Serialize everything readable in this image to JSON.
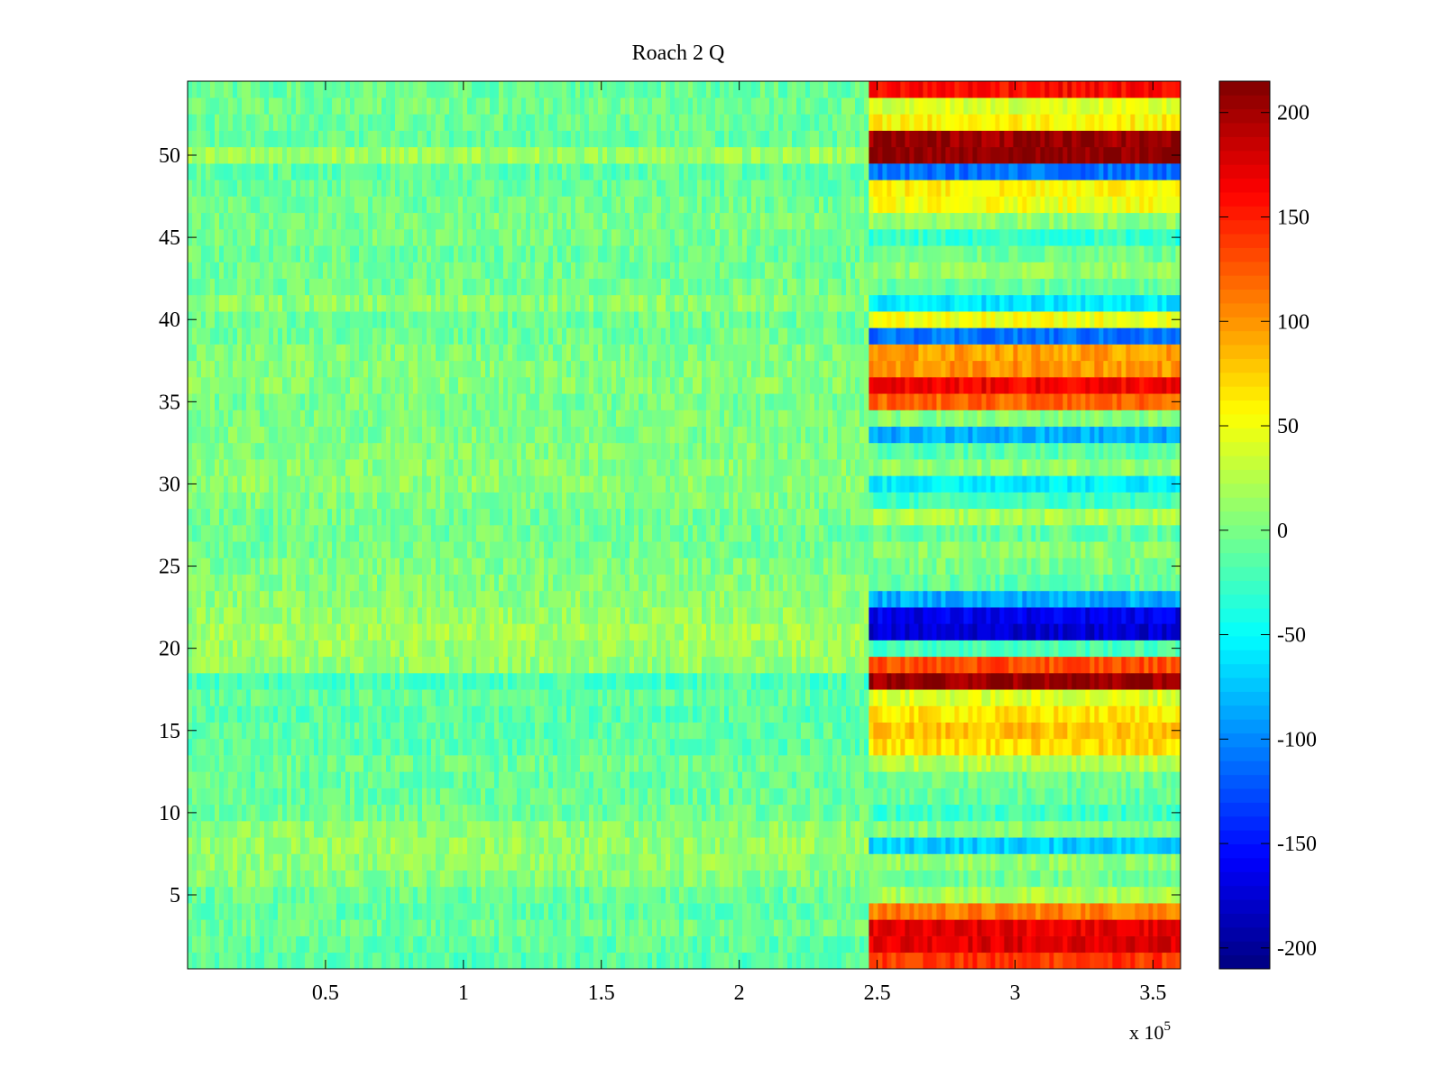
{
  "chart_data": {
    "type": "heatmap",
    "title": "Roach 2 Q",
    "xlabel": "",
    "ylabel": "",
    "x_exponent_label": "x 10",
    "x_exponent_power": "5",
    "xlim": [
      0,
      3.6
    ],
    "ylim": [
      0.5,
      54.5
    ],
    "x_ticks": [
      {
        "value": 0.5,
        "label": "0.5"
      },
      {
        "value": 1,
        "label": "1"
      },
      {
        "value": 1.5,
        "label": "1.5"
      },
      {
        "value": 2,
        "label": "2"
      },
      {
        "value": 2.5,
        "label": "2.5"
      },
      {
        "value": 3,
        "label": "3"
      },
      {
        "value": 3.5,
        "label": "3.5"
      }
    ],
    "y_ticks": [
      {
        "value": 5,
        "label": "5"
      },
      {
        "value": 10,
        "label": "10"
      },
      {
        "value": 15,
        "label": "15"
      },
      {
        "value": 20,
        "label": "20"
      },
      {
        "value": 25,
        "label": "25"
      },
      {
        "value": 30,
        "label": "30"
      },
      {
        "value": 35,
        "label": "35"
      },
      {
        "value": 40,
        "label": "40"
      },
      {
        "value": 45,
        "label": "45"
      },
      {
        "value": 50,
        "label": "50"
      }
    ],
    "colorbar": {
      "colormap": "jet",
      "clim": [
        -210,
        215
      ],
      "ticks": [
        {
          "value": 200,
          "label": "200"
        },
        {
          "value": 150,
          "label": "150"
        },
        {
          "value": 100,
          "label": "100"
        },
        {
          "value": 50,
          "label": "50"
        },
        {
          "value": 0,
          "label": "0"
        },
        {
          "value": -50,
          "label": "-50"
        },
        {
          "value": -100,
          "label": "-100"
        },
        {
          "value": -150,
          "label": "-150"
        },
        {
          "value": -200,
          "label": "-200"
        }
      ]
    },
    "segments": [
      {
        "x_start": 0,
        "x_end": 2.47,
        "description": "noise region, values approx -40 to 25"
      },
      {
        "x_start": 2.47,
        "x_end": 3.6,
        "description": "signal region, per-row levels"
      }
    ],
    "rows": 54,
    "left_segment_row_values": [
      -15,
      -12,
      -5,
      -10,
      -8,
      5,
      10,
      12,
      8,
      -5,
      -8,
      -10,
      -6,
      -14,
      -12,
      -15,
      -10,
      -20,
      10,
      15,
      18,
      12,
      8,
      5,
      2,
      -2,
      -5,
      -3,
      2,
      8,
      6,
      4,
      2,
      0,
      -2,
      5,
      3,
      2,
      -4,
      -6,
      8,
      -2,
      -4,
      -6,
      -2,
      0,
      -4,
      -8,
      -12,
      15,
      -8,
      -6,
      -4,
      -8
    ],
    "right_segment_row_values": [
      140,
      175,
      170,
      110,
      20,
      -5,
      10,
      -70,
      5,
      -25,
      -10,
      -5,
      25,
      70,
      80,
      65,
      40,
      205,
      130,
      -20,
      -175,
      -165,
      -85,
      -10,
      0,
      5,
      -10,
      20,
      -25,
      -55,
      10,
      -15,
      -85,
      5,
      120,
      165,
      100,
      95,
      -110,
      50,
      -60,
      -10,
      10,
      -5,
      -30,
      10,
      50,
      60,
      -110,
      210,
      205,
      60,
      40,
      160
    ]
  }
}
